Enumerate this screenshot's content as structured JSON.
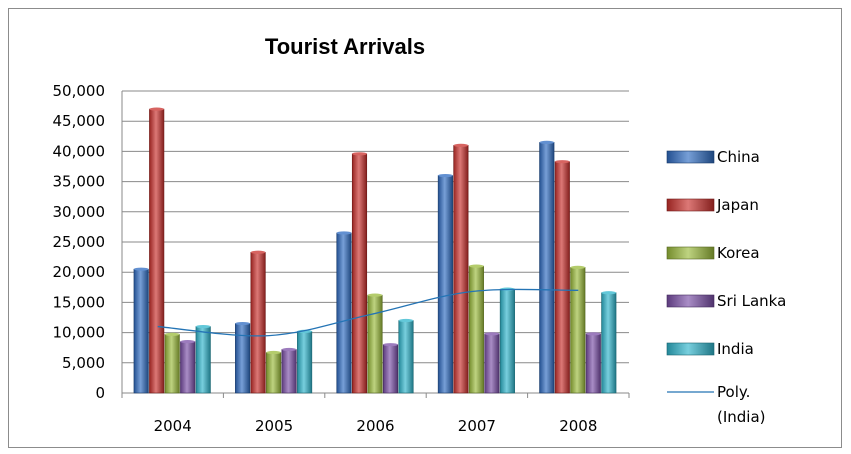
{
  "chart_data": {
    "type": "bar",
    "title": "Tourist Arrivals",
    "xlabel": "",
    "ylabel": "",
    "categories": [
      "2004",
      "2005",
      "2006",
      "2007",
      "2008"
    ],
    "ylim": [
      0,
      50000
    ],
    "ytick_step": 5000,
    "ytick_labels": [
      "0",
      "5,000",
      "10,000",
      "15,000",
      "20,000",
      "25,000",
      "30,000",
      "35,000",
      "40,000",
      "45,000",
      "50,000"
    ],
    "grid": true,
    "legend_position": "right",
    "series": [
      {
        "name": "China",
        "color": "#2E6BC1",
        "values": [
          20500,
          11500,
          26500,
          36000,
          41500
        ]
      },
      {
        "name": "Japan",
        "color": "#C9302C",
        "values": [
          47000,
          23300,
          39600,
          41000,
          38300
        ]
      },
      {
        "name": "Korea",
        "color": "#9BBB3B",
        "values": [
          9700,
          6700,
          16200,
          21000,
          20800
        ]
      },
      {
        "name": "Sri Lanka",
        "color": "#7B4FA7",
        "values": [
          8500,
          7200,
          8000,
          9800,
          9800
        ]
      },
      {
        "name": "India",
        "color": "#2FB5CC",
        "values": [
          11000,
          10200,
          12000,
          17200,
          16600
        ]
      }
    ],
    "trendline": {
      "name": "Poly.",
      "name_line2": "(India)",
      "type": "polynomial",
      "of_series": "India",
      "color": "#2474B5",
      "values": [
        11000,
        9500,
        13000,
        16800,
        17000
      ]
    }
  }
}
